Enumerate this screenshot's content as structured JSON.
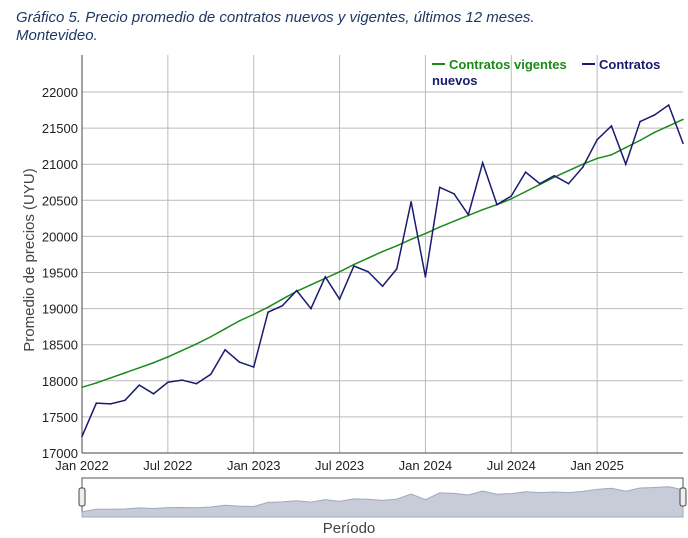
{
  "title_line1": "Gráfico 5. Precio promedio de contratos nuevos y vigentes, últimos 12 meses.",
  "title_line2": "Montevideo.",
  "chart_data": {
    "type": "line",
    "title": "Gráfico 5. Precio promedio de contratos nuevos y vigentes, últimos 12 meses. Montevideo.",
    "xlabel": "Período",
    "ylabel": "Promedio de precios (UYU)",
    "ylim": [
      17000,
      22500
    ],
    "yticks": [
      17000,
      17500,
      18000,
      18500,
      19000,
      19500,
      20000,
      20500,
      21000,
      21500,
      22000
    ],
    "xtick_labels": [
      "Jan 2022",
      "Jul 2022",
      "Jan 2023",
      "Jul 2023",
      "Jan 2024",
      "Jul 2024",
      "Jan 2025"
    ],
    "x_start": "2022-01",
    "x_end": "2025-07",
    "frequency": "monthly",
    "grid": true,
    "legend_position": "top-right",
    "range_slider": true,
    "series": [
      {
        "name": "Contratos vigentes",
        "color": "#1a8a1a",
        "values": [
          17910,
          17970,
          18040,
          18110,
          18180,
          18250,
          18330,
          18420,
          18510,
          18610,
          18720,
          18830,
          18920,
          19020,
          19130,
          19240,
          19330,
          19420,
          19510,
          19610,
          19700,
          19790,
          19870,
          19960,
          20040,
          20130,
          20210,
          20290,
          20370,
          20440,
          20520,
          20620,
          20720,
          20820,
          20910,
          21000,
          21080,
          21130,
          21230,
          21330,
          21440,
          21530,
          21620
        ]
      },
      {
        "name": "Contratos nuevos",
        "color": "#1a1a6e",
        "values": [
          17230,
          17690,
          17680,
          17730,
          17940,
          17820,
          17980,
          18010,
          17960,
          18090,
          18430,
          18260,
          18190,
          18950,
          19040,
          19250,
          19000,
          19440,
          19130,
          19590,
          19510,
          19310,
          19550,
          20480,
          19440,
          20680,
          20590,
          20300,
          21020,
          20440,
          20560,
          20890,
          20730,
          20840,
          20730,
          20960,
          21340,
          21530,
          21000,
          21590,
          21680,
          21820,
          21290
        ]
      }
    ]
  },
  "legend": {
    "vigentes": "Contratos vigentes",
    "nuevos_1": "Contratos",
    "nuevos_2": "nuevos"
  }
}
